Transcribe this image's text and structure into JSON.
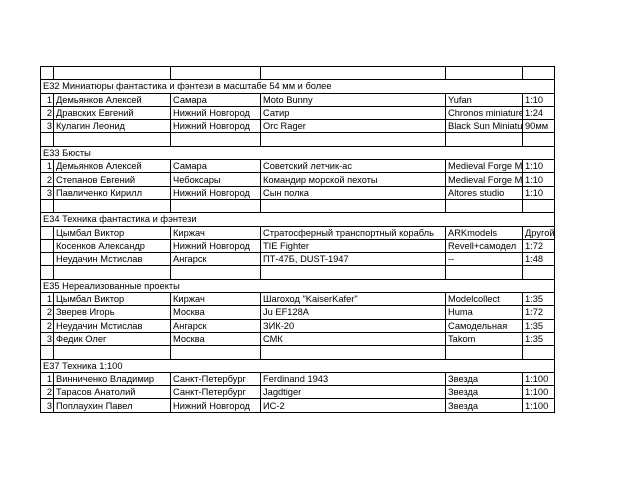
{
  "sections": [
    {
      "title": "Е32  Миниатюры фантастика и фэнтези в масштабе 54 мм и более",
      "rows": [
        {
          "n": 1,
          "name": "Демьянков Алексей",
          "city": "Самара",
          "model": "Moto Bunny",
          "maker": "Yufan",
          "scale": "1:10"
        },
        {
          "n": 2,
          "name": "Дравских Евгений",
          "city": "Нижний Новгород",
          "model": "Сатир",
          "maker": "Chronos miniature",
          "scale": "1:24"
        },
        {
          "n": 3,
          "name": "Кулагин Леонид",
          "city": "Нижний Новгород",
          "model": "Orc Rager",
          "maker": "Black Sun Miniatu",
          "scale": "90мм"
        }
      ]
    },
    {
      "title": "Е33  Бюсты",
      "rows": [
        {
          "n": 1,
          "name": "Демьянков Алексей",
          "city": "Самара",
          "model": "Советский летчик-ас",
          "maker": "Medieval Forge M",
          "scale": "1:10"
        },
        {
          "n": 2,
          "name": "Степанов Евгений",
          "city": "Чебоксары",
          "model": "Командир морской пехоты",
          "maker": "Medieval Forge M",
          "scale": "1:10"
        },
        {
          "n": 3,
          "name": "Павличенко Кирилл",
          "city": "Нижний Новгород",
          "model": "Сын полка",
          "maker": "Altores studio",
          "scale": "1:10"
        }
      ]
    },
    {
      "title": "Е34  Техника фантастика и фэнтези",
      "rows": [
        {
          "name": "Цымбал Виктор",
          "city": "Киржач",
          "model": "Стратосферный транспортный корабль",
          "maker": "ARKmodels",
          "scale": "Другой"
        },
        {
          "name": "Косенков Александр",
          "city": "Нижний Новгород",
          "model": "TIE Fighter",
          "maker": "Revell+самодел",
          "scale": "1:72"
        },
        {
          "name": "Неудачин Мстислав",
          "city": "Ангарск",
          "model": "ПТ-47Б, DUST-1947",
          "maker": "--",
          "scale": "1:48"
        }
      ]
    },
    {
      "title": "Е35  Нереализованные проекты",
      "rows": [
        {
          "n": 1,
          "name": "Цымбал Виктор",
          "city": "Киржач",
          "model": "Шагоход \"KaiserKafer\"",
          "maker": "Modelcollect",
          "scale": "1:35"
        },
        {
          "n": 2,
          "name": "Зверев Игорь",
          "city": "Москва",
          "model": "Ju EF128A",
          "maker": "Huma",
          "scale": "1:72"
        },
        {
          "n": 2,
          "name": "Неудачин Мстислав",
          "city": "Ангарск",
          "model": "ЗИК-20",
          "maker": "Самодельная",
          "scale": "1:35"
        },
        {
          "n": 3,
          "name": "Федик Олег",
          "city": "Москва",
          "model": "СМК",
          "maker": "Takom",
          "scale": "1:35"
        }
      ]
    },
    {
      "title": "Е37  Техника 1:100",
      "rows": [
        {
          "n": 1,
          "name": "Винниченко Владимир",
          "city": "Санкт-Петербург",
          "model": "Ferdinand 1943",
          "maker": "Звезда",
          "scale": "1:100"
        },
        {
          "n": 2,
          "name": "Тарасов Анатолий",
          "city": "Санкт-Петербург",
          "model": "Jagdtiger",
          "maker": "Звезда",
          "scale": "1:100"
        },
        {
          "n": 3,
          "name": "Поплаухин Павел",
          "city": "Нижний Новгород",
          "model": "ИС-2",
          "maker": "Звезда",
          "scale": "1:100"
        }
      ]
    }
  ]
}
